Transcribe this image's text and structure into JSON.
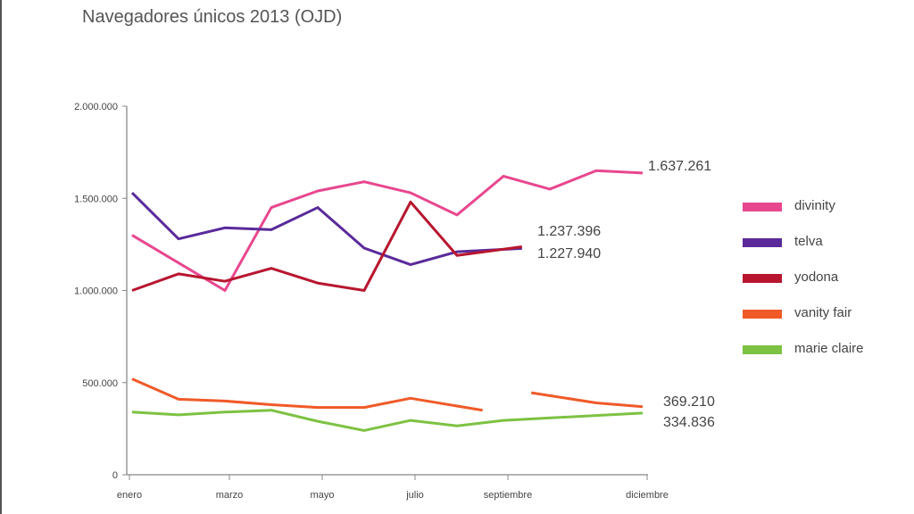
{
  "chart_data": {
    "type": "line",
    "title": "Navegadores únicos 2013 (OJD)",
    "xlabel": "",
    "ylabel": "",
    "ylim": [
      0,
      2000000
    ],
    "xlim": [
      1,
      12
    ],
    "y_ticks": [
      {
        "value": 0,
        "label": "0"
      },
      {
        "value": 500000,
        "label": "500.000"
      },
      {
        "value": 1000000,
        "label": "1.000.000"
      },
      {
        "value": 1500000,
        "label": "1.500.000"
      },
      {
        "value": 2000000,
        "label": "2.000.000"
      }
    ],
    "x_ticks": [
      {
        "value": 1,
        "label": "enero"
      },
      {
        "value": 3,
        "label": "marzo"
      },
      {
        "value": 5,
        "label": "mayo"
      },
      {
        "value": 7,
        "label": "julio"
      },
      {
        "value": 9,
        "label": "septiembre"
      },
      {
        "value": 12,
        "label": "diciembre"
      }
    ],
    "grid": false,
    "legend_position": "right",
    "series": [
      {
        "name": "divinity",
        "color": "#e8478f",
        "segments": [
          [
            [
              1,
              1300000
            ],
            [
              2,
              1150000
            ],
            [
              3,
              1000000
            ],
            [
              4,
              1450000
            ],
            [
              5,
              1540000
            ],
            [
              6,
              1590000
            ],
            [
              7,
              1530000
            ],
            [
              8,
              1410000
            ],
            [
              9,
              1620000
            ],
            [
              10,
              1550000
            ],
            [
              11,
              1650000
            ],
            [
              12,
              1637261
            ]
          ]
        ],
        "end_label": "1.637.261"
      },
      {
        "name": "telva",
        "color": "#5a2a9a",
        "segments": [
          [
            [
              1,
              1530000
            ],
            [
              2,
              1280000
            ],
            [
              3,
              1340000
            ],
            [
              4,
              1330000
            ],
            [
              5,
              1450000
            ],
            [
              6,
              1230000
            ],
            [
              7,
              1140000
            ],
            [
              8,
              1210000
            ],
            [
              9.4,
              1227940
            ]
          ]
        ],
        "end_label": "1.227.940"
      },
      {
        "name": "yodona",
        "color": "#b8162f",
        "segments": [
          [
            [
              1,
              1000000
            ],
            [
              2,
              1090000
            ],
            [
              3,
              1050000
            ],
            [
              4,
              1120000
            ],
            [
              5,
              1040000
            ],
            [
              6,
              1000000
            ],
            [
              7,
              1480000
            ],
            [
              8,
              1190000
            ],
            [
              9.4,
              1237396
            ]
          ]
        ],
        "end_label": "1.237.396"
      },
      {
        "name": "vanity fair",
        "color": "#f05a28",
        "segments": [
          [
            [
              1,
              520000
            ],
            [
              2,
              410000
            ],
            [
              3,
              400000
            ],
            [
              4,
              380000
            ],
            [
              5,
              365000
            ],
            [
              6,
              365000
            ],
            [
              7,
              415000
            ],
            [
              8.55,
              350000
            ]
          ],
          [
            [
              9.6,
              445000
            ],
            [
              11,
              390000
            ],
            [
              12,
              369210
            ]
          ]
        ],
        "end_label": "369.210"
      },
      {
        "name": "marie claire",
        "color": "#7dc242",
        "segments": [
          [
            [
              1,
              340000
            ],
            [
              2,
              325000
            ],
            [
              3,
              340000
            ],
            [
              4,
              350000
            ],
            [
              5,
              290000
            ],
            [
              6,
              240000
            ],
            [
              7,
              295000
            ],
            [
              8,
              265000
            ],
            [
              9,
              295000
            ],
            [
              12,
              334836
            ]
          ]
        ],
        "end_label": "334.836"
      }
    ]
  }
}
